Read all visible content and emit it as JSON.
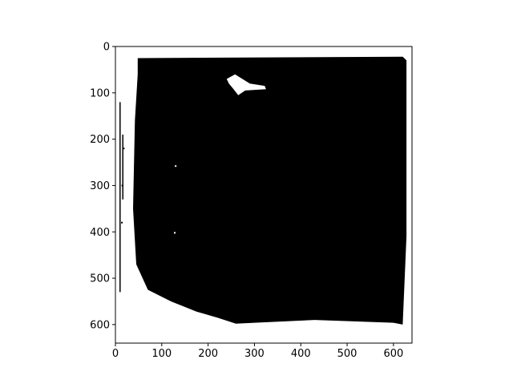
{
  "chart_data": {
    "type": "heatmap",
    "title": "",
    "xlabel": "",
    "ylabel": "",
    "image_size": [
      640,
      640
    ],
    "xlim": [
      0,
      640
    ],
    "ylim": [
      640,
      0
    ],
    "x_ticks": [
      0,
      100,
      200,
      300,
      400,
      500,
      600
    ],
    "y_ticks": [
      0,
      100,
      200,
      300,
      400,
      500,
      600
    ],
    "x_tick_labels": [
      "0",
      "100",
      "200",
      "300",
      "400",
      "500",
      "600"
    ],
    "y_tick_labels": [
      "0",
      "100",
      "200",
      "300",
      "400",
      "500",
      "600"
    ],
    "colormap": "binary (black = 1, white = 0)",
    "region_boundary": [
      [
        48,
        25
      ],
      [
        620,
        22
      ],
      [
        628,
        30
      ],
      [
        628,
        410
      ],
      [
        620,
        600
      ],
      [
        600,
        596
      ],
      [
        430,
        590
      ],
      [
        300,
        596
      ],
      [
        260,
        598
      ],
      [
        220,
        585
      ],
      [
        175,
        572
      ],
      [
        120,
        550
      ],
      [
        70,
        525
      ],
      [
        45,
        470
      ],
      [
        38,
        350
      ],
      [
        42,
        160
      ],
      [
        48,
        60
      ]
    ],
    "inner_hole": [
      [
        240,
        70
      ],
      [
        258,
        60
      ],
      [
        290,
        80
      ],
      [
        322,
        85
      ],
      [
        325,
        92
      ],
      [
        280,
        95
      ],
      [
        265,
        105
      ],
      [
        255,
        92
      ],
      [
        245,
        80
      ]
    ],
    "speckles": [
      [
        130,
        258
      ],
      [
        128,
        402
      ],
      [
        15,
        300
      ],
      [
        18,
        220
      ],
      [
        14,
        380
      ]
    ],
    "left_bars": [
      {
        "x": 10,
        "y0": 120,
        "y1": 530
      },
      {
        "x": 16,
        "y0": 190,
        "y1": 330
      }
    ]
  },
  "colors": {
    "foreground": "#000000",
    "background": "#ffffff"
  }
}
